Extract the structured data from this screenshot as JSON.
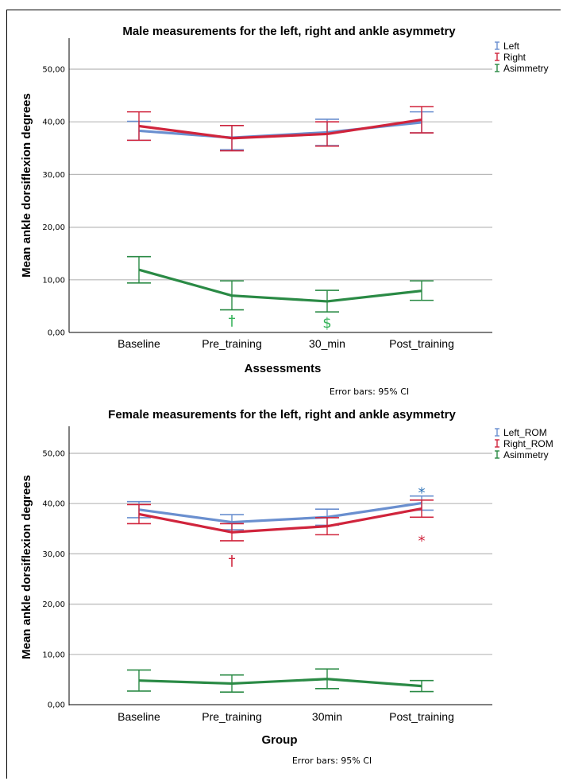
{
  "chart_data": [
    {
      "type": "line",
      "title": "Male measurements for the left, right and ankle asymmetry",
      "xlabel": "Assessments",
      "ylabel": "Mean  ankle dorsiflexion degrees",
      "note": "Error bars: 95% CI",
      "categories": [
        "Baseline",
        "Pre_training",
        "30_min",
        "Post_training"
      ],
      "yticks": [
        "0,00",
        "10,00",
        "20,00",
        "30,00",
        "40,00",
        "50,00"
      ],
      "ylim": [
        0,
        55
      ],
      "grid": true,
      "legend_position": "top-right",
      "series": [
        {
          "name": "Left",
          "color": "#6a8fcf",
          "values": [
            38.3,
            37.0,
            38.0,
            39.9
          ],
          "ci_low": [
            36.5,
            34.7,
            35.5,
            37.9
          ],
          "ci_high": [
            40.1,
            39.3,
            40.5,
            41.9
          ]
        },
        {
          "name": "Right",
          "color": "#d0243c",
          "values": [
            39.2,
            36.9,
            37.7,
            40.4
          ],
          "ci_low": [
            36.5,
            34.5,
            35.4,
            37.9
          ],
          "ci_high": [
            41.9,
            39.3,
            40.0,
            42.9
          ]
        },
        {
          "name": "Asimmetry",
          "color": "#2a8a45",
          "values": [
            11.9,
            7.0,
            5.9,
            7.9
          ],
          "ci_low": [
            9.4,
            4.3,
            3.9,
            6.1
          ],
          "ci_high": [
            14.4,
            9.8,
            8.0,
            9.8
          ]
        }
      ],
      "annotations": [
        {
          "text": "†",
          "category": "Pre_training",
          "y": 2.3,
          "color": "#36b35a"
        },
        {
          "text": "$",
          "category": "30_min",
          "y": 1.8,
          "color": "#36b35a"
        }
      ]
    },
    {
      "type": "line",
      "title": "Female measurements for the left, right and ankle asymmetry",
      "xlabel": "Group",
      "ylabel": "Mean ankle dorsiflexion degrees",
      "note": "Error bars: 95% CI",
      "categories": [
        "Baseline",
        "Pre_training",
        "30min",
        "Post_training"
      ],
      "yticks": [
        "0,00",
        "10,00",
        "20,00",
        "30,00",
        "40,00",
        "50,00"
      ],
      "ylim": [
        0,
        55
      ],
      "grid": true,
      "legend_position": "top-right",
      "series": [
        {
          "name": "Left_ROM",
          "color": "#6a8fcf",
          "values": [
            38.8,
            36.3,
            37.3,
            40.1
          ],
          "ci_low": [
            37.2,
            34.8,
            35.7,
            38.7
          ],
          "ci_high": [
            40.4,
            37.8,
            38.9,
            41.5
          ]
        },
        {
          "name": "Right_ROM",
          "color": "#d0243c",
          "values": [
            37.9,
            34.3,
            35.5,
            39.0
          ],
          "ci_low": [
            36.0,
            32.6,
            33.8,
            37.3
          ],
          "ci_high": [
            39.8,
            36.0,
            37.2,
            40.7
          ]
        },
        {
          "name": "Asimmetry",
          "color": "#2a8a45",
          "values": [
            4.8,
            4.2,
            5.1,
            3.7
          ],
          "ci_low": [
            2.7,
            2.5,
            3.2,
            2.6
          ],
          "ci_high": [
            6.9,
            5.9,
            7.1,
            4.8
          ]
        }
      ],
      "annotations": [
        {
          "text": "†",
          "category": "Pre_training",
          "y": 28.6,
          "color": "#d0243c"
        },
        {
          "text": "*",
          "category": "Post_training",
          "y": 42.2,
          "color": "#2e73b8"
        },
        {
          "text": "*",
          "category": "Post_training",
          "y": 32.6,
          "color": "#d0243c"
        }
      ]
    }
  ]
}
